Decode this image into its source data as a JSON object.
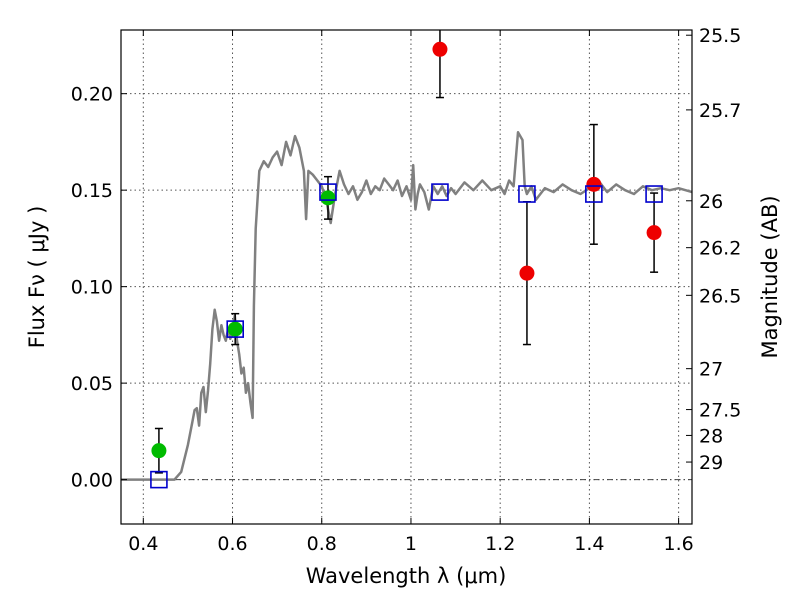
{
  "chart_data": {
    "type": "scatter",
    "title": "",
    "xlabel": "Wavelength  λ (μm)",
    "ylabel_left": "Flux  Fν  ( μJy )",
    "ylabel_right": "Magnitude (AB)",
    "xlim": [
      0.35,
      1.63
    ],
    "ylim": [
      -0.023,
      0.233
    ],
    "grid": true,
    "x_ticks": [
      {
        "v": 0.4,
        "label": "0.4"
      },
      {
        "v": 0.6,
        "label": "0.6"
      },
      {
        "v": 0.8,
        "label": "0.8"
      },
      {
        "v": 1.0,
        "label": "1"
      },
      {
        "v": 1.2,
        "label": "1.2"
      },
      {
        "v": 1.4,
        "label": "1.4"
      },
      {
        "v": 1.6,
        "label": "1.6"
      }
    ],
    "y_ticks": [
      {
        "v": 0.0,
        "label": "0.00"
      },
      {
        "v": 0.05,
        "label": "0.05"
      },
      {
        "v": 0.1,
        "label": "0.10"
      },
      {
        "v": 0.15,
        "label": "0.15"
      },
      {
        "v": 0.2,
        "label": "0.20"
      }
    ],
    "right_ticks": [
      {
        "flux": 0.2303,
        "label": "25.5"
      },
      {
        "flux": 0.1916,
        "label": "25.7"
      },
      {
        "flux": 0.1445,
        "label": "26"
      },
      {
        "flux": 0.1202,
        "label": "26.2"
      },
      {
        "flux": 0.0955,
        "label": "26.5"
      },
      {
        "flux": 0.0575,
        "label": "27"
      },
      {
        "flux": 0.0363,
        "label": "27.5"
      },
      {
        "flux": 0.0229,
        "label": "28"
      },
      {
        "flux": 0.0091,
        "label": "29"
      }
    ],
    "zero_line": 0.0,
    "colors": {
      "template": "#808080",
      "green": "#00bb00",
      "red": "#ee0000",
      "model": "#0000cc",
      "errorbar": "#000000",
      "grid": "#555555"
    },
    "model_template": [
      [
        0.35,
        0.0
      ],
      [
        0.47,
        0.0
      ],
      [
        0.485,
        0.004
      ],
      [
        0.5,
        0.018
      ],
      [
        0.51,
        0.03
      ],
      [
        0.515,
        0.036
      ],
      [
        0.52,
        0.037
      ],
      [
        0.525,
        0.028
      ],
      [
        0.53,
        0.045
      ],
      [
        0.535,
        0.048
      ],
      [
        0.54,
        0.035
      ],
      [
        0.545,
        0.046
      ],
      [
        0.55,
        0.06
      ],
      [
        0.555,
        0.078
      ],
      [
        0.56,
        0.088
      ],
      [
        0.565,
        0.082
      ],
      [
        0.57,
        0.072
      ],
      [
        0.575,
        0.08
      ],
      [
        0.58,
        0.075
      ],
      [
        0.585,
        0.072
      ],
      [
        0.59,
        0.078
      ],
      [
        0.595,
        0.073
      ],
      [
        0.6,
        0.077
      ],
      [
        0.605,
        0.085
      ],
      [
        0.61,
        0.072
      ],
      [
        0.615,
        0.065
      ],
      [
        0.62,
        0.055
      ],
      [
        0.625,
        0.058
      ],
      [
        0.63,
        0.045
      ],
      [
        0.635,
        0.05
      ],
      [
        0.64,
        0.04
      ],
      [
        0.645,
        0.032
      ],
      [
        0.648,
        0.09
      ],
      [
        0.652,
        0.13
      ],
      [
        0.66,
        0.16
      ],
      [
        0.67,
        0.165
      ],
      [
        0.68,
        0.162
      ],
      [
        0.69,
        0.167
      ],
      [
        0.7,
        0.17
      ],
      [
        0.71,
        0.163
      ],
      [
        0.72,
        0.175
      ],
      [
        0.73,
        0.168
      ],
      [
        0.74,
        0.178
      ],
      [
        0.75,
        0.172
      ],
      [
        0.76,
        0.16
      ],
      [
        0.765,
        0.135
      ],
      [
        0.77,
        0.16
      ],
      [
        0.78,
        0.158
      ],
      [
        0.79,
        0.155
      ],
      [
        0.8,
        0.152
      ],
      [
        0.81,
        0.145
      ],
      [
        0.82,
        0.133
      ],
      [
        0.83,
        0.148
      ],
      [
        0.84,
        0.16
      ],
      [
        0.85,
        0.153
      ],
      [
        0.86,
        0.148
      ],
      [
        0.87,
        0.152
      ],
      [
        0.88,
        0.145
      ],
      [
        0.89,
        0.149
      ],
      [
        0.9,
        0.155
      ],
      [
        0.91,
        0.148
      ],
      [
        0.92,
        0.152
      ],
      [
        0.93,
        0.15
      ],
      [
        0.94,
        0.156
      ],
      [
        0.95,
        0.153
      ],
      [
        0.96,
        0.15
      ],
      [
        0.97,
        0.155
      ],
      [
        0.98,
        0.147
      ],
      [
        0.99,
        0.152
      ],
      [
        1.0,
        0.145
      ],
      [
        1.005,
        0.163
      ],
      [
        1.01,
        0.14
      ],
      [
        1.015,
        0.148
      ],
      [
        1.02,
        0.153
      ],
      [
        1.03,
        0.149
      ],
      [
        1.04,
        0.14
      ],
      [
        1.05,
        0.152
      ],
      [
        1.06,
        0.148
      ],
      [
        1.07,
        0.152
      ],
      [
        1.08,
        0.147
      ],
      [
        1.09,
        0.151
      ],
      [
        1.1,
        0.148
      ],
      [
        1.12,
        0.154
      ],
      [
        1.14,
        0.15
      ],
      [
        1.16,
        0.155
      ],
      [
        1.18,
        0.15
      ],
      [
        1.2,
        0.152
      ],
      [
        1.21,
        0.148
      ],
      [
        1.22,
        0.155
      ],
      [
        1.23,
        0.152
      ],
      [
        1.24,
        0.18
      ],
      [
        1.25,
        0.176
      ],
      [
        1.255,
        0.152
      ],
      [
        1.26,
        0.148
      ],
      [
        1.27,
        0.152
      ],
      [
        1.28,
        0.145
      ],
      [
        1.3,
        0.151
      ],
      [
        1.32,
        0.149
      ],
      [
        1.34,
        0.153
      ],
      [
        1.36,
        0.15
      ],
      [
        1.38,
        0.148
      ],
      [
        1.4,
        0.151
      ],
      [
        1.42,
        0.155
      ],
      [
        1.44,
        0.149
      ],
      [
        1.46,
        0.153
      ],
      [
        1.48,
        0.15
      ],
      [
        1.5,
        0.148
      ],
      [
        1.52,
        0.152
      ],
      [
        1.54,
        0.15
      ],
      [
        1.56,
        0.151
      ],
      [
        1.58,
        0.15
      ],
      [
        1.6,
        0.151
      ],
      [
        1.63,
        0.149
      ]
    ],
    "series": [
      {
        "color": "green",
        "marker": "circle",
        "points": [
          {
            "x": 0.435,
            "y": 0.015,
            "err": 0.0115
          },
          {
            "x": 0.606,
            "y": 0.078,
            "err": 0.008
          },
          {
            "x": 0.814,
            "y": 0.146,
            "err": 0.011
          }
        ]
      },
      {
        "color": "red",
        "marker": "circle",
        "points": [
          {
            "x": 1.065,
            "y": 0.223,
            "err": 0.025
          },
          {
            "x": 1.26,
            "y": 0.107,
            "err": 0.037
          },
          {
            "x": 1.41,
            "y": 0.153,
            "err": 0.031
          },
          {
            "x": 1.545,
            "y": 0.128,
            "err": 0.0205
          }
        ]
      },
      {
        "color": "model",
        "marker": "square",
        "points": [
          {
            "x": 0.435,
            "y": 0.0
          },
          {
            "x": 0.606,
            "y": 0.078
          },
          {
            "x": 0.814,
            "y": 0.149
          },
          {
            "x": 1.065,
            "y": 0.149
          },
          {
            "x": 1.26,
            "y": 0.148
          },
          {
            "x": 1.41,
            "y": 0.148
          },
          {
            "x": 1.545,
            "y": 0.148
          }
        ]
      }
    ]
  }
}
